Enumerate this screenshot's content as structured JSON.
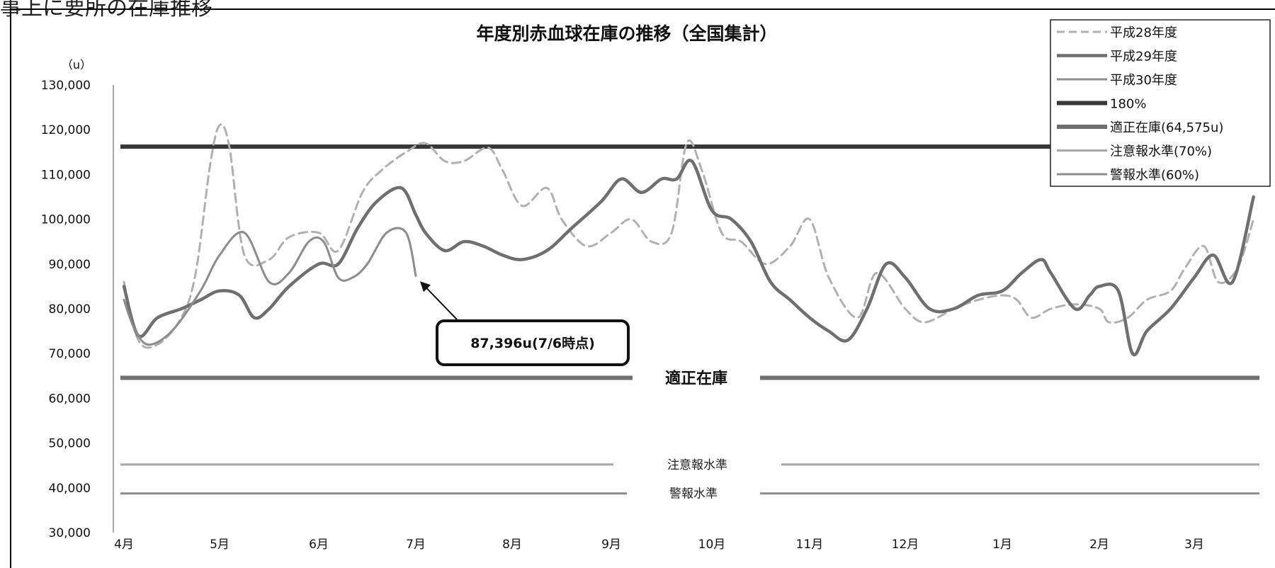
{
  "page": {
    "header_text": "事上に要所の在庫推移"
  },
  "chart_data": {
    "type": "line",
    "title": "年度別赤血球在庫の推移（全国集計）",
    "unit_label": "（u）",
    "ylim": [
      30000,
      130000
    ],
    "y_ticks": [
      30000,
      40000,
      50000,
      60000,
      70000,
      80000,
      90000,
      100000,
      110000,
      120000,
      130000
    ],
    "y_tick_labels": [
      "30,000",
      "40,000",
      "50,000",
      "60,000",
      "70,000",
      "80,000",
      "90,000",
      "100,000",
      "110,000",
      "120,000",
      "130,000"
    ],
    "x_ticks": [
      0,
      1,
      2,
      3,
      4,
      5,
      6,
      7,
      8,
      9,
      10,
      11
    ],
    "x_tick_labels": [
      "4月",
      "5月",
      "6月",
      "7月",
      "8月",
      "9月",
      "10月",
      "11月",
      "12月",
      "1月",
      "2月",
      "3月"
    ],
    "xlim": [
      0,
      11.65
    ],
    "grid": false,
    "legend_position": "top-right",
    "series": [
      {
        "name": "平成28年度",
        "style": "dashed",
        "color": "#b0b0b0",
        "width": 3,
        "x": [
          0,
          0.15,
          0.35,
          0.6,
          0.75,
          0.9,
          1.0,
          1.1,
          1.25,
          1.5,
          1.7,
          2.0,
          2.2,
          2.45,
          2.65,
          2.9,
          3.1,
          3.3,
          3.5,
          3.75,
          3.9,
          4.1,
          4.35,
          4.5,
          4.75,
          5.0,
          5.2,
          5.4,
          5.6,
          5.75,
          5.9,
          6.1,
          6.3,
          6.55,
          6.8,
          7.0,
          7.2,
          7.5,
          7.7,
          8.0,
          8.2,
          8.5,
          8.75,
          9.0,
          9.15,
          9.3,
          9.5,
          9.75,
          10.0,
          10.1,
          10.3,
          10.5,
          10.75,
          10.9,
          11.1,
          11.25,
          11.45,
          11.62
        ],
        "y": [
          86000,
          73000,
          72000,
          78000,
          88000,
          112000,
          121000,
          116000,
          92000,
          91000,
          96000,
          97000,
          93000,
          106000,
          111000,
          115000,
          117000,
          113000,
          113000,
          116000,
          111000,
          103000,
          107000,
          100000,
          94000,
          97000,
          100000,
          95000,
          97000,
          117000,
          111000,
          97000,
          95000,
          90000,
          94000,
          100000,
          87000,
          78000,
          88000,
          80000,
          77000,
          80000,
          82000,
          83000,
          82000,
          78000,
          80000,
          81000,
          80000,
          77000,
          78000,
          82000,
          84000,
          89000,
          94000,
          86000,
          89000,
          100000
        ]
      },
      {
        "name": "平成29年度",
        "style": "solid",
        "color": "#6f6f6f",
        "width": 4.5,
        "x": [
          0,
          0.15,
          0.35,
          0.6,
          0.8,
          1.0,
          1.2,
          1.35,
          1.5,
          1.7,
          2.0,
          2.2,
          2.4,
          2.6,
          2.85,
          3.0,
          3.1,
          3.3,
          3.5,
          3.7,
          3.9,
          4.1,
          4.35,
          4.6,
          4.9,
          5.1,
          5.3,
          5.5,
          5.65,
          5.8,
          6.0,
          6.2,
          6.4,
          6.6,
          6.8,
          7.0,
          7.2,
          7.4,
          7.6,
          7.8,
          8.0,
          8.25,
          8.5,
          8.75,
          9.0,
          9.2,
          9.4,
          9.5,
          9.75,
          9.9,
          10.0,
          10.2,
          10.35,
          10.5,
          10.75,
          11.0,
          11.2,
          11.4,
          11.62
        ],
        "y": [
          85000,
          74000,
          78000,
          80000,
          82000,
          84000,
          83000,
          78000,
          80000,
          85000,
          90000,
          90000,
          98000,
          104000,
          107000,
          101000,
          97000,
          93000,
          95000,
          94000,
          92000,
          91000,
          93000,
          98000,
          104000,
          109000,
          106000,
          109000,
          109000,
          113000,
          102000,
          100000,
          95000,
          86000,
          82000,
          78000,
          75000,
          73000,
          80000,
          90000,
          87000,
          80000,
          80000,
          83000,
          84000,
          88000,
          91000,
          88000,
          80000,
          83000,
          85000,
          84000,
          70000,
          75000,
          80000,
          87000,
          92000,
          86000,
          105000
        ]
      },
      {
        "name": "平成30年度",
        "style": "solid",
        "color": "#8c8c8c",
        "width": 3,
        "x": [
          0,
          0.1,
          0.25,
          0.5,
          0.8,
          1.0,
          1.25,
          1.5,
          1.7,
          1.9,
          2.05,
          2.2,
          2.35,
          2.5,
          2.7,
          2.9,
          3.0
        ],
        "y": [
          82000,
          76000,
          72000,
          75000,
          84000,
          92000,
          97000,
          86000,
          88000,
          95000,
          95000,
          87000,
          87000,
          90000,
          97000,
          97000,
          87396
        ]
      }
    ],
    "reference_lines": [
      {
        "name": "180%",
        "value": 116235,
        "color": "#383838",
        "width": 6,
        "label": ""
      },
      {
        "name": "適正在庫(64,575u)",
        "value": 64575,
        "color": "#6f6f6f",
        "width": 6,
        "label": "適正在庫"
      },
      {
        "name": "注意報水準(70%)",
        "value": 45203,
        "color": "#a8a8a8",
        "width": 3,
        "label": "注意報水準"
      },
      {
        "name": "警報水準(60%)",
        "value": 38745,
        "color": "#8c8c8c",
        "width": 3,
        "label": "警報水準"
      }
    ],
    "annotations": [
      {
        "text": "87,396u(7/6時点)",
        "points_to_x": 3.0,
        "points_to_y": 87396
      }
    ]
  }
}
